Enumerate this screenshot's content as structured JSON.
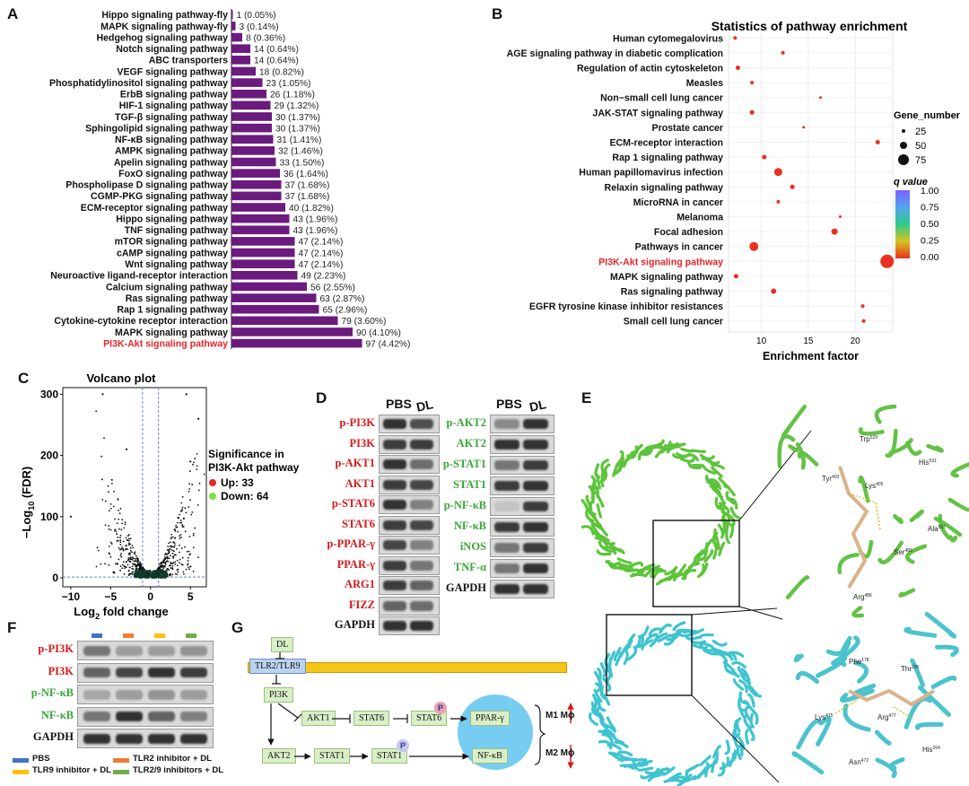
{
  "panels": {
    "A": "A",
    "B": "B",
    "C": "C",
    "D": "D",
    "E": "E",
    "F": "F",
    "G": "G"
  },
  "panelA": {
    "bars": [
      {
        "name": "Hippo signaling pathway-fly",
        "label": "1 (0.05%)",
        "value": 1
      },
      {
        "name": "MAPK signaling pathway-fly",
        "label": "3 (0.14%)",
        "value": 3
      },
      {
        "name": "Hedgehog signaling pathway",
        "label": "8 (0.36%)",
        "value": 8
      },
      {
        "name": "Notch signaling pathway",
        "label": "14 (0.64%)",
        "value": 14
      },
      {
        "name": "ABC transporters",
        "label": "14 (0.64%)",
        "value": 14
      },
      {
        "name": "VEGF signaling pathway",
        "label": "18 (0.82%)",
        "value": 18
      },
      {
        "name": "Phosphatidylinositol signaling pathway",
        "label": "23 (1.05%)",
        "value": 23
      },
      {
        "name": "ErbB signaling pathway",
        "label": "26 (1.18%)",
        "value": 26
      },
      {
        "name": "HIF-1 signaling pathway",
        "label": "29 (1.32%)",
        "value": 29
      },
      {
        "name": "TGF-β signaling pathway",
        "label": "30 (1.37%)",
        "value": 30
      },
      {
        "name": "Sphingolipid signaling pathway",
        "label": "30 (1.37%)",
        "value": 30
      },
      {
        "name": "NF-κB signaling pathway",
        "label": "31 (1.41%)",
        "value": 31
      },
      {
        "name": "AMPK signaling pathway",
        "label": "32 (1.46%)",
        "value": 32
      },
      {
        "name": "Apelin signaling pathway",
        "label": "33 (1.50%)",
        "value": 33
      },
      {
        "name": "FoxO signaling pathway",
        "label": "36 (1.64%)",
        "value": 36
      },
      {
        "name": "Phospholipase D signaling pathway",
        "label": "37 (1.68%)",
        "value": 37
      },
      {
        "name": "CGMP-PKG signaling pathway",
        "label": "37 (1.68%)",
        "value": 37
      },
      {
        "name": "ECM-receptor signaling pathway",
        "label": "40 (1.82%)",
        "value": 40
      },
      {
        "name": "Hippo signaling pathway",
        "label": "43 (1.96%)",
        "value": 43
      },
      {
        "name": "TNF signaling pathway",
        "label": "43 (1.96%)",
        "value": 43
      },
      {
        "name": "mTOR signaling pathway",
        "label": "47 (2.14%)",
        "value": 47
      },
      {
        "name": "cAMP signaling pathway",
        "label": "47 (2.14%)",
        "value": 47
      },
      {
        "name": "Wnt signaling pathway",
        "label": "47 (2.14%)",
        "value": 47
      },
      {
        "name": "Neuroactive ligand-receptor interaction",
        "label": "49 (2.23%)",
        "value": 49
      },
      {
        "name": "Calcium signaling pathway",
        "label": "56 (2.55%)",
        "value": 56
      },
      {
        "name": "Ras signaling pathway",
        "label": "63 (2.87%)",
        "value": 63
      },
      {
        "name": "Rap 1 signaling pathway",
        "label": "65 (2.96%)",
        "value": 65
      },
      {
        "name": "Cytokine-cytokine receptor interaction",
        "label": "79 (3.60%)",
        "value": 79
      },
      {
        "name": "MAPK signaling pathway",
        "label": "90 (4.10%)",
        "value": 90
      },
      {
        "name": "PI3K-Akt signaling pathway",
        "label": "97 (4.42%)",
        "value": 97,
        "highlight": true
      }
    ],
    "bar_color": "#6a1b7d",
    "highlight_color": "#e3262a"
  },
  "panelB": {
    "title": "Statistics of pathway enrichment",
    "xlabel": "Enrichment factor",
    "xticks": [
      "10",
      "15",
      "20"
    ],
    "xlim": [
      6.5,
      24
    ],
    "points": [
      {
        "name": "Human cytomegalovirus",
        "x": 7.2,
        "size": 3,
        "q": 0.0
      },
      {
        "name": "AGE signaling pathway in diabetic complication",
        "x": 12.3,
        "size": 3,
        "q": 0.0
      },
      {
        "name": "Regulation of actin cytoskeleton",
        "x": 7.5,
        "size": 4,
        "q": 0.0
      },
      {
        "name": "Measles",
        "x": 9.0,
        "size": 3,
        "q": 0.0
      },
      {
        "name": "Non−small cell lung cancer",
        "x": 16.3,
        "size": 2,
        "q": 0.0
      },
      {
        "name": "JAK-STAT signaling pathway",
        "x": 9.0,
        "size": 4,
        "q": 0.0
      },
      {
        "name": "Prostate cancer",
        "x": 14.5,
        "size": 2,
        "q": 0.0
      },
      {
        "name": "ECM-receptor interaction",
        "x": 22.4,
        "size": 4,
        "q": 0.0
      },
      {
        "name": "Rap 1 signaling pathway",
        "x": 10.3,
        "size": 4,
        "q": 0.0
      },
      {
        "name": "Human papillomavirus infection",
        "x": 11.8,
        "size": 8,
        "q": 0.0
      },
      {
        "name": "Relaxin signaling pathway",
        "x": 13.3,
        "size": 4,
        "q": 0.0
      },
      {
        "name": "MicroRNA in cancer",
        "x": 11.8,
        "size": 3,
        "q": 0.0
      },
      {
        "name": "Melanoma",
        "x": 18.4,
        "size": 2,
        "q": 0.0
      },
      {
        "name": "Focal adhesion",
        "x": 17.8,
        "size": 6,
        "q": 0.0
      },
      {
        "name": "Pathways in cancer",
        "x": 9.2,
        "size": 9,
        "q": 0.0
      },
      {
        "name": "PI3K-Akt signaling pathway",
        "x": 23.4,
        "size": 14,
        "q": 0.0,
        "highlight": true
      },
      {
        "name": "MAPK signaling pathway",
        "x": 7.3,
        "size": 4,
        "q": 0.0
      },
      {
        "name": "Ras signaling pathway",
        "x": 11.3,
        "size": 5,
        "q": 0.0
      },
      {
        "name": "EGFR tyrosine kinase inhibitor resistances",
        "x": 20.8,
        "size": 3,
        "q": 0.0
      },
      {
        "name": "Small cell lung cancer",
        "x": 20.9,
        "size": 3,
        "q": 0.0
      }
    ],
    "legend_size_title": "Gene_number",
    "legend_sizes": [
      "25",
      "50",
      "75"
    ],
    "legend_q_title": "q value",
    "legend_q_ticks": [
      "1.00",
      "0.75",
      "0.50",
      "0.25",
      "0.00"
    ]
  },
  "panelC": {
    "title": "Volcano plot",
    "xlabel": "Log",
    "xlabel_sub": "2",
    "xlabel_rest": " fold change",
    "ylabel": "−Log",
    "ylabel_sub": "10",
    "ylabel_rest": " (FDR)",
    "xticks": [
      "−10",
      "−5",
      "0",
      "5"
    ],
    "yticks": [
      "0",
      "100",
      "200",
      "300"
    ],
    "legend_title_1": "Significance in",
    "legend_title_2": "PI3K-Akt pathway",
    "up_label": "Up: 33",
    "down_label": "Down: 64",
    "up_color": "#e3262a",
    "down_color": "#7be04a"
  },
  "panelD": {
    "col1_headers": [
      "PBS",
      "DL"
    ],
    "col2_headers": [
      "PBS",
      "DL"
    ],
    "left": [
      {
        "label": "p-PI3K",
        "color": "red"
      },
      {
        "label": "PI3K",
        "color": "red"
      },
      {
        "label": "p-AKT1",
        "color": "red"
      },
      {
        "label": "AKT1",
        "color": "red"
      },
      {
        "label": "p-STAT6",
        "color": "red"
      },
      {
        "label": "STAT6",
        "color": "red"
      },
      {
        "label": "p-PPAR-γ",
        "color": "red"
      },
      {
        "label": "PPAR-γ",
        "color": "red"
      },
      {
        "label": "ARG1",
        "color": "red"
      },
      {
        "label": "FIZZ",
        "color": "red"
      },
      {
        "label": "GAPDH",
        "color": "blk"
      }
    ],
    "right": [
      {
        "label": "p-AKT2",
        "color": "green"
      },
      {
        "label": "AKT2",
        "color": "green"
      },
      {
        "label": "p-STAT1",
        "color": "green"
      },
      {
        "label": "STAT1",
        "color": "green"
      },
      {
        "label": "p-NF-κB",
        "color": "green"
      },
      {
        "label": "NF-κB",
        "color": "green"
      },
      {
        "label": "iNOS",
        "color": "green"
      },
      {
        "label": "TNF-α",
        "color": "green"
      },
      {
        "label": "GAPDH",
        "color": "blk"
      }
    ]
  },
  "panelE": {
    "top_labels": [
      "Trp",
      "Tyr",
      "Lys",
      "His",
      "Ala",
      "Ser",
      "Arg"
    ],
    "top_sups": [
      "529",
      "403",
      "405",
      "531",
      "507",
      "483",
      "486"
    ],
    "bottom_labels": [
      "Phe",
      "Thr",
      "Lys",
      "Arg",
      "His",
      "Asn"
    ],
    "bottom_sups": [
      "178",
      "205",
      "475",
      "477",
      "204",
      "472"
    ]
  },
  "panelF": {
    "labels": [
      {
        "label": "p-PI3K",
        "color": "red"
      },
      {
        "label": "PI3K",
        "color": "red"
      },
      {
        "label": "p-NF-κB",
        "color": "green"
      },
      {
        "label": "NF-κB",
        "color": "green"
      },
      {
        "label": "GAPDH",
        "color": "blk"
      }
    ],
    "legend": [
      {
        "label": "PBS",
        "color": "#4472c4"
      },
      {
        "label": "TLR2 inhibitor + DL",
        "color": "#ed7d31"
      },
      {
        "label": "TLR9 inhibitor + DL",
        "color": "#ffc000"
      },
      {
        "label": "TLR2/9 inhibitors + DL",
        "color": "#70ad47"
      }
    ]
  },
  "panelG": {
    "dl": "DL",
    "receptor": "TLR2/TLR9",
    "pi3k": "PI3K",
    "akt1": "AKT1",
    "stat6a": "STAT6",
    "stat6b": "STAT6",
    "pparg": "PPAR-γ",
    "akt2": "AKT2",
    "stat1a": "STAT1",
    "stat1b": "STAT1",
    "nfkb": "NF-κB",
    "p1": "P",
    "p2": "P",
    "m1": "M1 Mϕ",
    "m2": "M2 Mϕ"
  }
}
